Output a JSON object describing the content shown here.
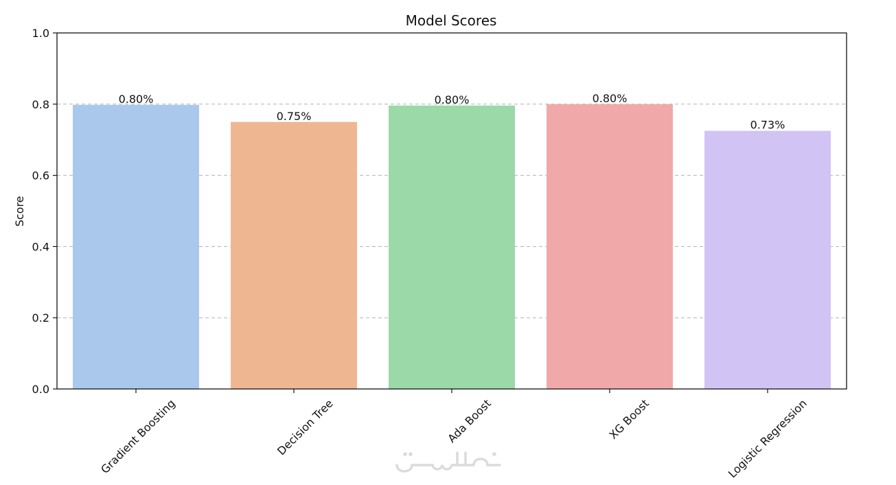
{
  "chart_data": {
    "type": "bar",
    "title": "Model Scores",
    "xlabel": "",
    "ylabel": "Score",
    "ylim": [
      0,
      1.0
    ],
    "yticks": [
      "0.0",
      "0.2",
      "0.4",
      "0.6",
      "0.8",
      "1.0"
    ],
    "ytick_values": [
      0,
      0.2,
      0.4,
      0.6,
      0.8,
      1.0
    ],
    "grid": "horizontal-dashed",
    "categories": [
      "Gradient Boosting",
      "Decision Tree",
      "Ada Boost",
      "XG Boost",
      "Logistic Regression"
    ],
    "values": [
      0.798,
      0.75,
      0.796,
      0.8,
      0.725
    ],
    "data_labels": [
      "0.80%",
      "0.75%",
      "0.80%",
      "0.80%",
      "0.73%"
    ],
    "colors": [
      "#a9c8ec",
      "#efb791",
      "#9bd9a8",
      "#f0a9a8",
      "#d1c4f5"
    ]
  },
  "watermark": {
    "name": "khamsat-logo-watermark"
  }
}
